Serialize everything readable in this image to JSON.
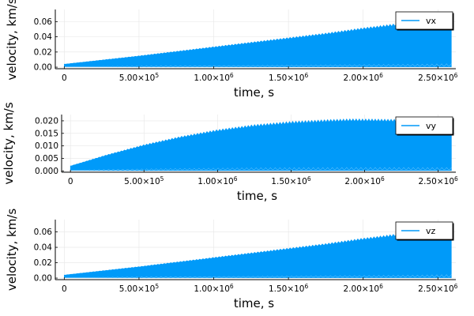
{
  "colors": {
    "series": "#009af9",
    "axis": "#000000",
    "grid": "#e6e6e6",
    "background": "#ffffff"
  },
  "chart_data": [
    {
      "type": "area",
      "xlabel": "time, s",
      "ylabel": "velocity, km/s",
      "xlim": [
        -60000,
        2620000
      ],
      "ylim": [
        -0.002,
        0.076
      ],
      "x_ticks": [
        0,
        500000,
        1000000,
        1500000,
        2000000,
        2500000
      ],
      "x_tick_labels": [
        {
          "mant": "0",
          "exp": ""
        },
        {
          "mant": "5.00×10",
          "exp": "5"
        },
        {
          "mant": "1.00×10",
          "exp": "6"
        },
        {
          "mant": "1.50×10",
          "exp": "6"
        },
        {
          "mant": "2.00×10",
          "exp": "6"
        },
        {
          "mant": "2.50×10",
          "exp": "6"
        }
      ],
      "y_ticks": [
        0,
        0.02,
        0.04,
        0.06
      ],
      "y_tick_labels": [
        "0.00",
        "0.02",
        "0.04",
        "0.06"
      ],
      "grid": true,
      "legend": {
        "position": "top-right",
        "entries": [
          "vx"
        ]
      },
      "series": [
        {
          "name": "vx",
          "envelope": {
            "x": [
              0,
              250000,
              500000,
              750000,
              1000000,
              1250000,
              1500000,
              1750000,
              2000000,
              2250000,
              2500000,
              2590000
            ],
            "upper": [
              0.004,
              0.0095,
              0.015,
              0.021,
              0.027,
              0.033,
              0.039,
              0.045,
              0.052,
              0.058,
              0.066,
              0.071
            ],
            "lower": [
              0.0005,
              0.0005,
              0.0005,
              0.0005,
              0.0005,
              0.0005,
              0.0005,
              0.0005,
              0.0005,
              0.0005,
              0.0005,
              0.0005
            ]
          }
        }
      ]
    },
    {
      "type": "area",
      "xlabel": "time, s",
      "ylabel": "velocity, km/s",
      "xlim": [
        -60000,
        2620000
      ],
      "ylim": [
        -0.0005,
        0.0225
      ],
      "x_ticks": [
        0,
        500000,
        1000000,
        1500000,
        2000000,
        2500000
      ],
      "x_tick_labels": [
        {
          "mant": "0",
          "exp": ""
        },
        {
          "mant": "5.00×10",
          "exp": "5"
        },
        {
          "mant": "1.00×10",
          "exp": "6"
        },
        {
          "mant": "1.50×10",
          "exp": "6"
        },
        {
          "mant": "2.00×10",
          "exp": "6"
        },
        {
          "mant": "2.50×10",
          "exp": "6"
        }
      ],
      "y_ticks": [
        0,
        0.005,
        0.01,
        0.015,
        0.02
      ],
      "y_tick_labels": [
        "0.000",
        "0.005",
        "0.010",
        "0.015",
        "0.020"
      ],
      "grid": true,
      "legend": {
        "position": "top-right",
        "entries": [
          "vy"
        ]
      },
      "series": [
        {
          "name": "vy",
          "envelope": {
            "x": [
              0,
              250000,
              500000,
              750000,
              1000000,
              1250000,
              1500000,
              1750000,
              1900000,
              2100000,
              2300000,
              2500000,
              2590000
            ],
            "upper": [
              0.002,
              0.0065,
              0.0105,
              0.0138,
              0.0165,
              0.0185,
              0.0198,
              0.0205,
              0.0208,
              0.0207,
              0.0205,
              0.0203,
              0.0202
            ],
            "lower": [
              0.0002,
              0.0002,
              0.0002,
              0.0002,
              0.0002,
              0.0002,
              0.0002,
              0.0002,
              0.0002,
              0.0002,
              0.0002,
              0.0002,
              0.0002
            ]
          }
        }
      ]
    },
    {
      "type": "area",
      "xlabel": "time, s",
      "ylabel": "velocity, km/s",
      "xlim": [
        -60000,
        2620000
      ],
      "ylim": [
        -0.002,
        0.076
      ],
      "x_ticks": [
        0,
        500000,
        1000000,
        1500000,
        2000000,
        2500000
      ],
      "x_tick_labels": [
        {
          "mant": "0",
          "exp": ""
        },
        {
          "mant": "5.00×10",
          "exp": "5"
        },
        {
          "mant": "1.00×10",
          "exp": "6"
        },
        {
          "mant": "1.50×10",
          "exp": "6"
        },
        {
          "mant": "2.00×10",
          "exp": "6"
        },
        {
          "mant": "2.50×10",
          "exp": "6"
        }
      ],
      "y_ticks": [
        0,
        0.02,
        0.04,
        0.06
      ],
      "y_tick_labels": [
        "0.00",
        "0.02",
        "0.04",
        "0.06"
      ],
      "grid": true,
      "legend": {
        "position": "top-right",
        "entries": [
          "vz"
        ]
      },
      "series": [
        {
          "name": "vz",
          "envelope": {
            "x": [
              0,
              250000,
              500000,
              750000,
              1000000,
              1250000,
              1500000,
              1750000,
              2000000,
              2250000,
              2500000,
              2590000
            ],
            "upper": [
              0.004,
              0.0095,
              0.015,
              0.021,
              0.027,
              0.033,
              0.039,
              0.045,
              0.052,
              0.058,
              0.066,
              0.071
            ],
            "lower": [
              0.0005,
              0.0005,
              0.0005,
              0.0005,
              0.0005,
              0.0005,
              0.0005,
              0.0005,
              0.0005,
              0.0005,
              0.0005,
              0.0005
            ]
          }
        }
      ]
    }
  ]
}
